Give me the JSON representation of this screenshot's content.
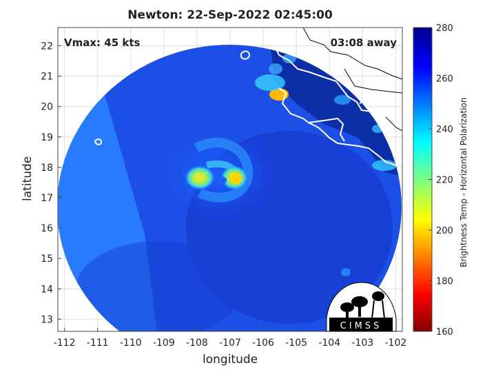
{
  "title": "Newton: 22-Sep-2022 02:45:00",
  "vmax": "Vmax: 45 kts",
  "time_away": "03:08 away",
  "logo_text": "CIMSS",
  "colors": {
    "cloud_cold": "#ffd400",
    "deep_ocean": "#0a2a9a",
    "coast": "#ffffff",
    "grid": "#dcdcdc"
  },
  "chart_data": {
    "type": "heatmap",
    "xlabel": "longitude",
    "ylabel": "latitude",
    "xlim": [
      -112.2,
      -101.8
    ],
    "ylim": [
      12.6,
      22.6
    ],
    "x_ticks": [
      -112,
      -111,
      -110,
      -109,
      -108,
      -107,
      -106,
      -105,
      -104,
      -103,
      -102
    ],
    "y_ticks": [
      13,
      14,
      15,
      16,
      17,
      18,
      19,
      20,
      21,
      22
    ],
    "grid": true,
    "colorbar": {
      "label": "Brightness Temp - Horizontal Polarization",
      "min": 160,
      "max": 280,
      "ticks": [
        160,
        180,
        200,
        220,
        240,
        260,
        280
      ],
      "colormap": "jet"
    }
  }
}
